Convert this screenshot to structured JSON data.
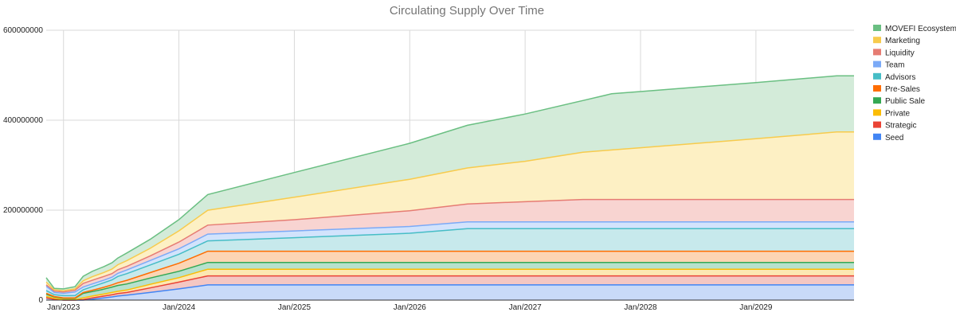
{
  "chart_data": {
    "type": "area",
    "stacked": true,
    "title": "Circulating Supply Over Time",
    "xlabel": "",
    "ylabel": "",
    "x_unit": "years",
    "xlim": [
      2022.85,
      2029.85
    ],
    "ylim": [
      0,
      600000000
    ],
    "y_ticks": [
      "0",
      "200000000",
      "400000000",
      "600000000"
    ],
    "y_tick_values": [
      0,
      200000000,
      400000000,
      600000000
    ],
    "x_tick_labels": [
      "Jan/2023",
      "Jan/2024",
      "Jan/2025",
      "Jan/2026",
      "Jan/2027",
      "Jan/2028",
      "Jan/2029"
    ],
    "x_tick_values": [
      2023,
      2024,
      2025,
      2026,
      2027,
      2028,
      2029
    ],
    "grid": true,
    "legend_position": "right",
    "x": [
      2022.85,
      2022.92,
      2023.0,
      2023.1,
      2023.17,
      2023.25,
      2023.35,
      2023.42,
      2023.47,
      2023.55,
      2023.75,
      2024.0,
      2024.25,
      2025.0,
      2026.0,
      2026.5,
      2027.0,
      2027.5,
      2027.75,
      2028.0,
      2029.0,
      2029.7,
      2029.85
    ],
    "series": [
      {
        "name": "Seed",
        "color": "#4285F4",
        "fill": "#C9DAF8",
        "values": [
          5000000,
          2000000,
          0,
          0,
          0,
          2000000,
          5000000,
          7000000,
          9000000,
          11000000,
          17000000,
          25000000,
          33750000,
          33750000,
          33750000,
          33750000,
          33750000,
          33750000,
          33750000,
          33750000,
          33750000,
          33750000,
          33750000
        ]
      },
      {
        "name": "Strategic",
        "color": "#EA4335",
        "fill": "#F4C7C3",
        "values": [
          0,
          0,
          0,
          0,
          1000000,
          3000000,
          4000000,
          5000000,
          5500000,
          6000000,
          10000000,
          15000000,
          20000000,
          20000000,
          20000000,
          20000000,
          20000000,
          20000000,
          20000000,
          20000000,
          20000000,
          20000000,
          20000000
        ]
      },
      {
        "name": "Private",
        "color": "#FBBC04",
        "fill": "#FCE8B2",
        "values": [
          3000000,
          2000000,
          1000000,
          1000000,
          4000000,
          4000000,
          4500000,
          5000000,
          5000000,
          5500000,
          8000000,
          10000000,
          15000000,
          15000000,
          15000000,
          15000000,
          15000000,
          15000000,
          15000000,
          15000000,
          15000000,
          15000000,
          15000000
        ]
      },
      {
        "name": "Public Sale",
        "color": "#34A853",
        "fill": "#B7E1CD",
        "values": [
          5000000,
          3000000,
          3000000,
          3000000,
          10000000,
          10000000,
          11000000,
          12000000,
          13000000,
          13500000,
          14000000,
          14000000,
          15000000,
          15000000,
          15000000,
          15000000,
          15000000,
          15000000,
          15000000,
          15000000,
          15000000,
          15000000,
          15000000
        ]
      },
      {
        "name": "Pre-Sales",
        "color": "#FF6D01",
        "fill": "#FCD5B4",
        "values": [
          2000000,
          1000000,
          1000000,
          1000000,
          2000000,
          3000000,
          4000000,
          5000000,
          6000000,
          8000000,
          12000000,
          18000000,
          25000000,
          25000000,
          25000000,
          25000000,
          25000000,
          25000000,
          25000000,
          25000000,
          25000000,
          25000000,
          25000000
        ]
      },
      {
        "name": "Advisors",
        "color": "#46BDC6",
        "fill": "#C7E9EC",
        "values": [
          6000000,
          4000000,
          5000000,
          5000000,
          6000000,
          8000000,
          10000000,
          11000000,
          14000000,
          15000000,
          17000000,
          20000000,
          23000000,
          30000000,
          40000000,
          50000000,
          50000000,
          50000000,
          50000000,
          50000000,
          50000000,
          50000000,
          50000000
        ]
      },
      {
        "name": "Team",
        "color": "#7BAAF7",
        "fill": "#D2E3FC",
        "values": [
          10000000,
          5000000,
          5000000,
          8000000,
          6000000,
          6000000,
          6000000,
          6000000,
          7000000,
          8000000,
          10000000,
          12000000,
          15000000,
          15000000,
          15000000,
          15000000,
          15000000,
          15000000,
          15000000,
          15000000,
          15000000,
          15000000,
          15000000
        ]
      },
      {
        "name": "Liquidity",
        "color": "#E67C73",
        "fill": "#F8D4D1",
        "values": [
          3000000,
          3000000,
          3000000,
          4000000,
          8000000,
          8000000,
          8000000,
          8000000,
          8000000,
          8000000,
          10000000,
          15000000,
          20000000,
          25000000,
          35000000,
          40000000,
          45000000,
          50000000,
          50000000,
          50000000,
          50000000,
          50000000,
          50000000
        ]
      },
      {
        "name": "Marketing",
        "color": "#F7CB4D",
        "fill": "#FDF0C4",
        "values": [
          6000000,
          3000000,
          3000000,
          3000000,
          6000000,
          8000000,
          9000000,
          10000000,
          11000000,
          13000000,
          17000000,
          25000000,
          33000000,
          50000000,
          70000000,
          80000000,
          90000000,
          105000000,
          110000000,
          115000000,
          135000000,
          150000000,
          150000000
        ]
      },
      {
        "name": "MOVEFI Ecosystem",
        "color": "#6ABF82",
        "fill": "#D3EBD9",
        "values": [
          10000000,
          3000000,
          4000000,
          5000000,
          10000000,
          12000000,
          13000000,
          14000000,
          15000000,
          17000000,
          20000000,
          25000000,
          35000000,
          55000000,
          80000000,
          95000000,
          105000000,
          115000000,
          125000000,
          125000000,
          125000000,
          125000000,
          125000000
        ]
      }
    ]
  }
}
